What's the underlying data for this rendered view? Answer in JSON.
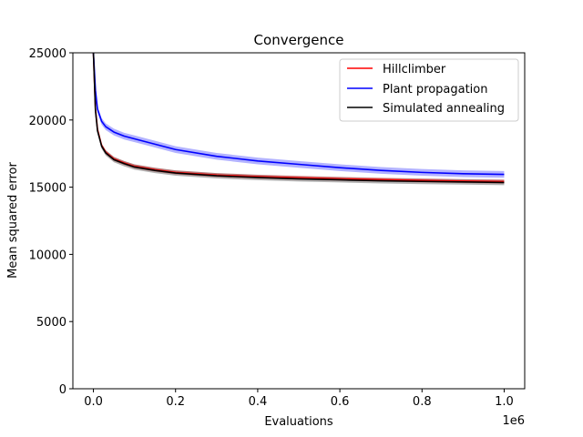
{
  "chart_data": {
    "type": "line",
    "title": "Convergence",
    "xlabel": "Evaluations",
    "ylabel": "Mean squared error",
    "x_offset_label": "1e6",
    "xlim": [
      -0.05,
      1.05
    ],
    "ylim": [
      0,
      25000
    ],
    "x_ticks": [
      0.0,
      0.2,
      0.4,
      0.6,
      0.8,
      1.0
    ],
    "x_tick_labels": [
      "0.0",
      "0.2",
      "0.4",
      "0.6",
      "0.8",
      "1.0"
    ],
    "y_ticks": [
      0,
      5000,
      10000,
      15000,
      20000,
      25000
    ],
    "y_tick_labels": [
      "0",
      "5000",
      "10000",
      "15000",
      "20000",
      "25000"
    ],
    "grid": false,
    "legend": "top-right",
    "x": [
      0.0,
      0.005,
      0.01,
      0.02,
      0.03,
      0.05,
      0.075,
      0.1,
      0.15,
      0.2,
      0.3,
      0.4,
      0.5,
      0.6,
      0.7,
      0.8,
      0.9,
      1.0
    ],
    "series": [
      {
        "name": "Hillclimber",
        "color": "#ff0000",
        "values": [
          25000,
          20800,
          19300,
          18100,
          17600,
          17100,
          16800,
          16550,
          16300,
          16100,
          15900,
          15780,
          15700,
          15620,
          15560,
          15500,
          15450,
          15420
        ],
        "band": 150
      },
      {
        "name": "Plant propagation",
        "color": "#0000ff",
        "values": [
          25000,
          22200,
          20800,
          19900,
          19500,
          19100,
          18800,
          18600,
          18200,
          17800,
          17300,
          16950,
          16700,
          16450,
          16250,
          16100,
          16000,
          15950
        ],
        "band": 250
      },
      {
        "name": "Simulated annealing",
        "color": "#000000",
        "values": [
          25000,
          20700,
          19200,
          18050,
          17550,
          17050,
          16750,
          16500,
          16250,
          16050,
          15850,
          15720,
          15620,
          15550,
          15480,
          15430,
          15390,
          15350
        ],
        "band": 200
      }
    ]
  }
}
